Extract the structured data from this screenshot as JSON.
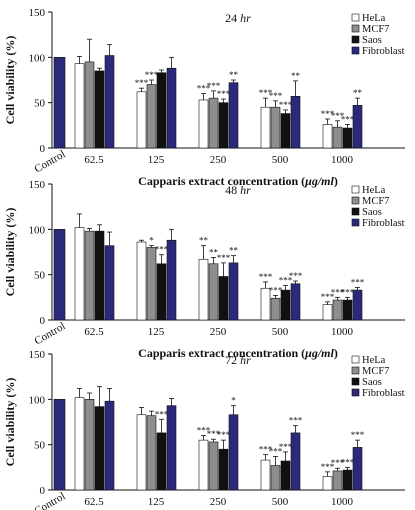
{
  "colors": {
    "HeLa": "#ffffff",
    "MCF7": "#8e8e8e",
    "Saos": "#111111",
    "Fibroblast": "#2b2a7a"
  },
  "chart_data": [
    {
      "type": "bar",
      "title_main": "24",
      "title_unit": "hr",
      "ylabel": "Cell viability (%)",
      "xlabel_main": "Capparis extract concentration (",
      "xlabel_unit": "μg/ml",
      "xlabel_end": ")",
      "ylim": [
        0,
        150
      ],
      "yticks": [
        "0",
        "50",
        "100",
        "150"
      ],
      "control_label": "Control",
      "control_value": 100,
      "categories": [
        "62.5",
        "125",
        "250",
        "500",
        "1000"
      ],
      "series": [
        {
          "name": "HeLa",
          "values": [
            93,
            62,
            53,
            45,
            26
          ],
          "errors": [
            8,
            4,
            7,
            10,
            6
          ],
          "sig": [
            "",
            "***",
            "***",
            "***",
            "***"
          ]
        },
        {
          "name": "MCF7",
          "values": [
            95,
            70,
            55,
            45,
            23
          ],
          "errors": [
            25,
            5,
            8,
            7,
            7
          ],
          "sig": [
            "",
            "***",
            "***",
            "***",
            "***"
          ]
        },
        {
          "name": "Saos",
          "values": [
            85,
            83,
            50,
            38,
            22
          ],
          "errors": [
            3,
            3,
            4,
            4,
            4
          ],
          "sig": [
            "",
            "",
            "***",
            "***",
            "***"
          ]
        },
        {
          "name": "Fibroblast",
          "values": [
            102,
            88,
            72,
            57,
            47
          ],
          "errors": [
            12,
            12,
            3,
            17,
            8
          ],
          "sig": [
            "",
            "",
            "**",
            "**",
            "**"
          ]
        }
      ]
    },
    {
      "type": "bar",
      "title_main": "48",
      "title_unit": "hr",
      "ylabel": "Cell viability (%)",
      "xlabel_main": "Capparis extract concentration (",
      "xlabel_unit": "μg/ml",
      "xlabel_end": ")",
      "ylim": [
        0,
        150
      ],
      "yticks": [
        "0",
        "50",
        "100",
        "150"
      ],
      "control_label": "Control",
      "control_value": 100,
      "categories": [
        "62.5",
        "125",
        "250",
        "500",
        "1000"
      ],
      "series": [
        {
          "name": "HeLa",
          "values": [
            102,
            86,
            67,
            35,
            17
          ],
          "errors": [
            15,
            2,
            15,
            7,
            3
          ],
          "sig": [
            "",
            "",
            "**",
            "***",
            "***"
          ]
        },
        {
          "name": "MCF7",
          "values": [
            98,
            80,
            62,
            24,
            22
          ],
          "errors": [
            3,
            2,
            7,
            3,
            3
          ],
          "sig": [
            "",
            "*",
            "**",
            "***",
            "***"
          ]
        },
        {
          "name": "Saos",
          "values": [
            98,
            62,
            48,
            33,
            22
          ],
          "errors": [
            7,
            10,
            15,
            5,
            3
          ],
          "sig": [
            "",
            "***",
            "***",
            "***",
            "***"
          ]
        },
        {
          "name": "Fibroblast",
          "values": [
            82,
            88,
            63,
            40,
            33
          ],
          "errors": [
            15,
            12,
            8,
            3,
            3
          ],
          "sig": [
            "",
            "",
            "**",
            "***",
            "***"
          ]
        }
      ]
    },
    {
      "type": "bar",
      "title_main": "72",
      "title_unit": "hr",
      "ylabel": "Cell viability (%)",
      "xlabel_main": "Capparis extract concentration (",
      "xlabel_unit": "μg/ml",
      "xlabel_end": ")",
      "ylim": [
        0,
        150
      ],
      "yticks": [
        "0",
        "50",
        "100",
        "150"
      ],
      "control_label": "Control",
      "control_value": 100,
      "categories": [
        "62.5",
        "125",
        "250",
        "500",
        "1000"
      ],
      "series": [
        {
          "name": "HeLa",
          "values": [
            102,
            83,
            55,
            33,
            15
          ],
          "errors": [
            10,
            8,
            5,
            6,
            5
          ],
          "sig": [
            "",
            "",
            "***",
            "***",
            "***"
          ]
        },
        {
          "name": "MCF7",
          "values": [
            100,
            82,
            53,
            27,
            21
          ],
          "errors": [
            7,
            5,
            3,
            10,
            3
          ],
          "sig": [
            "",
            "",
            "***",
            "***",
            "***"
          ]
        },
        {
          "name": "Saos",
          "values": [
            92,
            63,
            45,
            32,
            22
          ],
          "errors": [
            22,
            15,
            10,
            10,
            3
          ],
          "sig": [
            "",
            "***",
            "***",
            "***",
            "***"
          ]
        },
        {
          "name": "Fibroblast",
          "values": [
            98,
            93,
            83,
            63,
            47
          ],
          "errors": [
            14,
            8,
            10,
            8,
            8
          ],
          "sig": [
            "",
            "",
            "*",
            "***",
            "***"
          ]
        }
      ]
    }
  ]
}
